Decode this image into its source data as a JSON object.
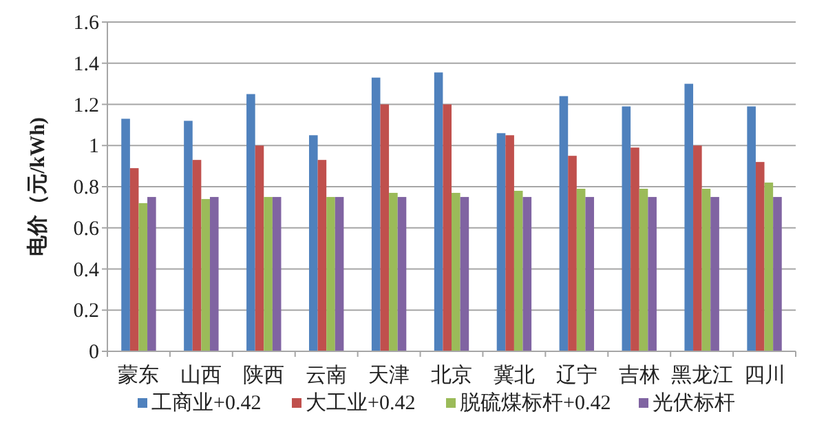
{
  "chart_data": {
    "type": "bar",
    "ylabel": "电价（元/kWh)",
    "categories": [
      "蒙东",
      "山西",
      "陕西",
      "云南",
      "天津",
      "北京",
      "冀北",
      "辽宁",
      "吉林",
      "黑龙江",
      "四川"
    ],
    "series": [
      {
        "name": "工商业+0.42",
        "color": "#4f81bd",
        "values": [
          1.13,
          1.12,
          1.25,
          1.05,
          1.33,
          1.355,
          1.06,
          1.24,
          1.19,
          1.3,
          1.19
        ]
      },
      {
        "name": "大工业+0.42",
        "color": "#c0504d",
        "values": [
          0.89,
          0.93,
          1.0,
          0.93,
          1.2,
          1.2,
          1.05,
          0.95,
          0.99,
          1.0,
          0.92
        ]
      },
      {
        "name": "脱硫煤标杆+0.42",
        "color": "#9bbb59",
        "values": [
          0.72,
          0.74,
          0.75,
          0.75,
          0.77,
          0.77,
          0.78,
          0.79,
          0.79,
          0.79,
          0.82
        ]
      },
      {
        "name": "光伏标杆",
        "color": "#8064a2",
        "values": [
          0.75,
          0.75,
          0.75,
          0.75,
          0.75,
          0.75,
          0.75,
          0.75,
          0.75,
          0.75,
          0.75
        ]
      }
    ],
    "ylim": [
      0,
      1.6
    ],
    "yticks": [
      0,
      0.2,
      0.4,
      0.6,
      0.8,
      1,
      1.2,
      1.4,
      1.6
    ],
    "grid": "y",
    "legend": "bottom"
  }
}
